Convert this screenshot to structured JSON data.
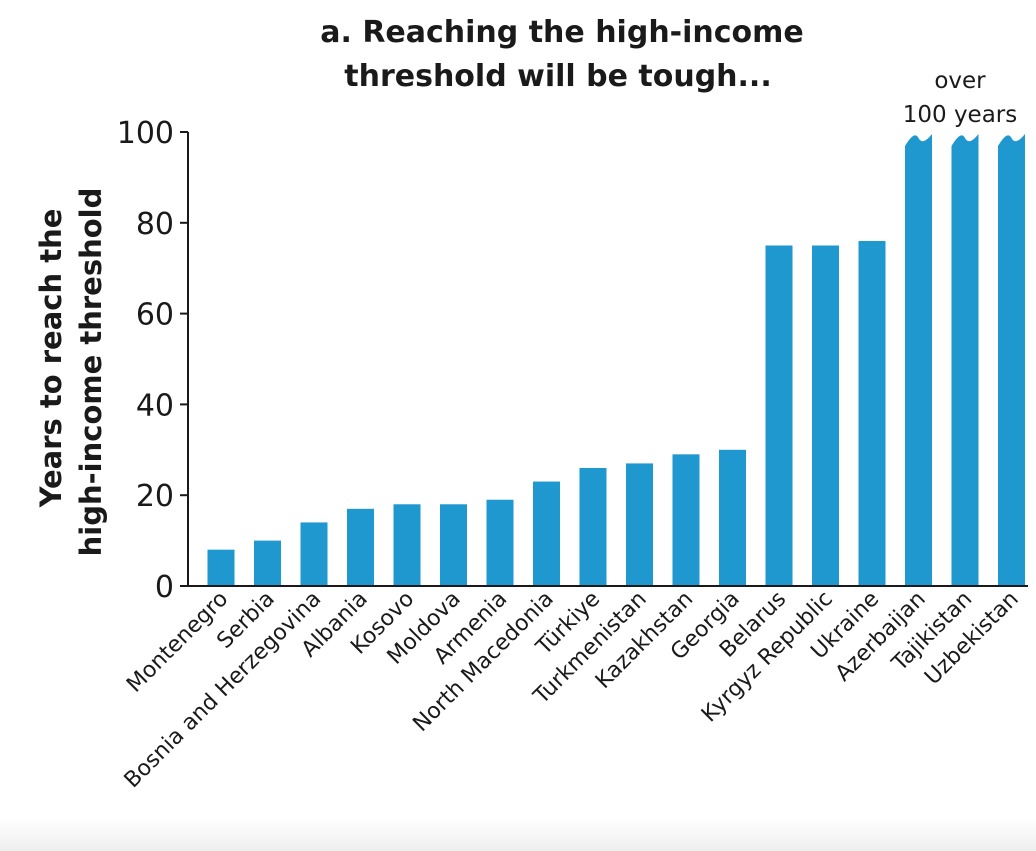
{
  "chart_data": {
    "type": "bar",
    "title": [
      "a. Reaching the high-income",
      "threshold will be tough..."
    ],
    "ylabel": [
      "Years to reach the",
      "high-income threshold"
    ],
    "xlabel": "",
    "ylim": [
      0,
      100
    ],
    "yticks": [
      0,
      20,
      40,
      60,
      80,
      100
    ],
    "grid": false,
    "categories": [
      "Montenegro",
      "Serbia",
      "Bosnia and Herzegovina",
      "Albania",
      "Kosovo",
      "Moldova",
      "Armenia",
      "North Macedonia",
      "Türkiye",
      "Turkmenistan",
      "Kazakhstan",
      "Georgia",
      "Belarus",
      "Kyrgyz Republic",
      "Ukraine",
      "Azerbaijan",
      "Tajikistan",
      "Uzbekistan"
    ],
    "values": [
      8,
      10,
      14,
      17,
      18,
      18,
      19,
      23,
      26,
      27,
      29,
      30,
      75,
      75,
      76,
      100,
      100,
      100
    ],
    "truncated": [
      false,
      false,
      false,
      false,
      false,
      false,
      false,
      false,
      false,
      false,
      false,
      false,
      false,
      false,
      false,
      true,
      true,
      true
    ],
    "annotation": [
      "over",
      "100 years"
    ],
    "bar_color": "#1f97cf",
    "axis_color": "#1a1a1a"
  }
}
